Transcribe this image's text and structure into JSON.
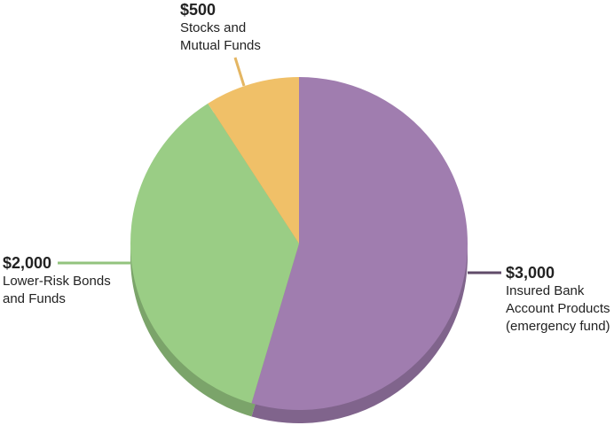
{
  "chart_data": {
    "type": "pie",
    "categories": [
      "Insured Bank Account Products (emergency fund)",
      "Lower-Risk Bonds and Funds",
      "Stocks and Mutual Funds"
    ],
    "values": [
      3000,
      2000,
      500
    ],
    "value_labels": [
      "$3,000",
      "$2,000",
      "$500"
    ],
    "colors": [
      "#a07daf",
      "#9acd85",
      "#f0c068"
    ]
  }
}
